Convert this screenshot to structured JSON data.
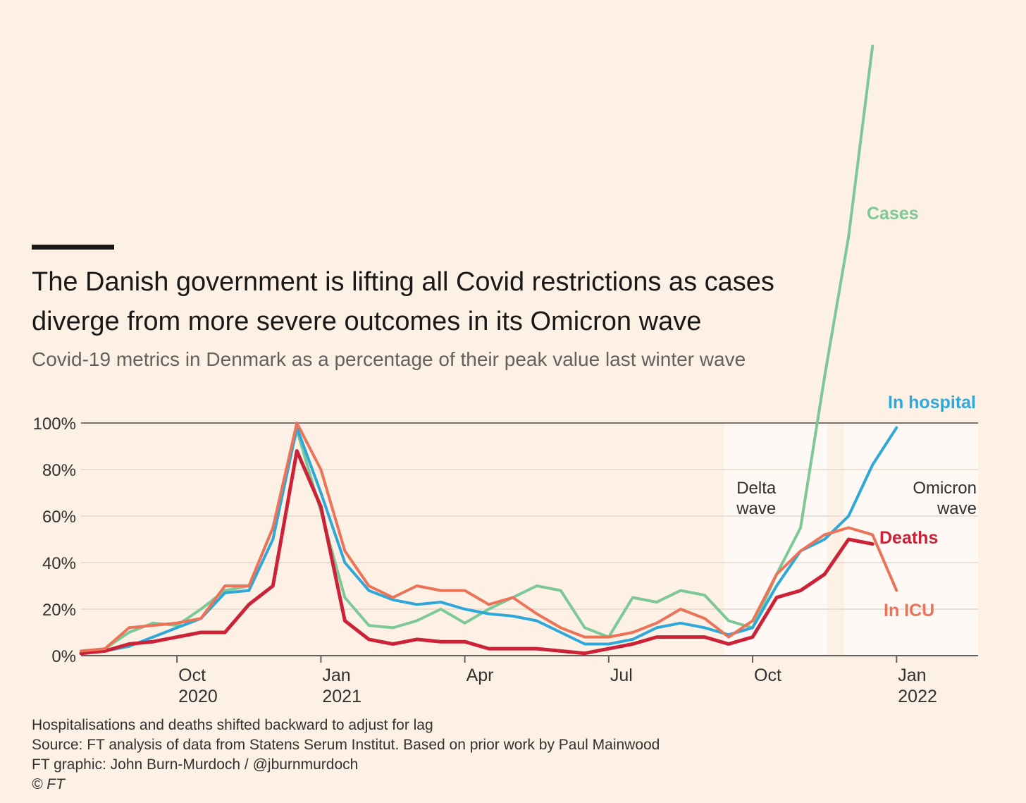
{
  "chart_data": {
    "type": "line",
    "title": "The Danish government is lifting all Covid restrictions as cases diverge from more severe outcomes in its Omicron wave",
    "subtitle": "Covid-19 metrics in Denmark as a percentage of their peak value last winter wave",
    "notes": [
      "Hospitalisations and deaths shifted backward to adjust for lag",
      "Source: FT analysis of data from Statens Serum Institut. Based on prior work by Paul Mainwood",
      "FT graphic: John Burn-Murdoch / @jburnmurdoch",
      "© FT"
    ],
    "x": [
      7,
      7.5,
      8,
      8.5,
      9,
      9.5,
      10,
      10.5,
      11,
      11.5,
      12,
      12.5,
      13,
      13.5,
      14,
      14.5,
      15,
      15.5,
      16,
      16.5,
      17,
      17.5,
      18,
      18.5,
      19,
      19.5,
      20,
      20.5,
      21,
      21.5,
      22,
      22.5,
      23,
      23.5,
      24
    ],
    "xlim": [
      7,
      25.7
    ],
    "xticks": [
      {
        "value": 9,
        "label": "Oct 2020"
      },
      {
        "value": 12,
        "label": "Jan 2021"
      },
      {
        "value": 15,
        "label": "Apr"
      },
      {
        "value": 18,
        "label": "Jul"
      },
      {
        "value": 21,
        "label": "Oct"
      },
      {
        "value": 24,
        "label": "Jan 2022"
      }
    ],
    "ylim": [
      0,
      262
    ],
    "yticks": [
      {
        "value": 0,
        "label": "0%"
      },
      {
        "value": 20,
        "label": "20%"
      },
      {
        "value": 40,
        "label": "40%"
      },
      {
        "value": 60,
        "label": "60%"
      },
      {
        "value": 80,
        "label": "80%"
      },
      {
        "value": 100,
        "label": "100%"
      }
    ],
    "grid": true,
    "bands": [
      {
        "label": "Delta wave",
        "start": 20.4,
        "end": 22.55
      },
      {
        "label": "Omicron wave",
        "start": 22.9,
        "end": 25.7
      }
    ],
    "series": [
      {
        "name": "Cases",
        "color": "#7cc896",
        "values": [
          1,
          3,
          10,
          14,
          13,
          20,
          28,
          30,
          55,
          97,
          62,
          25,
          13,
          12,
          15,
          20,
          14,
          20,
          25,
          30,
          28,
          12,
          8,
          25,
          23,
          28,
          26,
          15,
          12,
          35,
          55,
          120,
          180,
          262,
          null
        ]
      },
      {
        "name": "In hospital",
        "color": "#2ea8d8",
        "values": [
          1,
          2,
          4,
          8,
          12,
          16,
          27,
          28,
          50,
          98,
          70,
          40,
          28,
          24,
          22,
          23,
          20,
          18,
          17,
          15,
          10,
          5,
          5,
          7,
          12,
          14,
          12,
          9,
          12,
          30,
          45,
          50,
          60,
          82,
          98
        ]
      },
      {
        "name": "Deaths",
        "color": "#cc2237",
        "values": [
          1,
          2,
          5,
          6,
          8,
          10,
          10,
          22,
          30,
          88,
          64,
          15,
          7,
          5,
          7,
          6,
          6,
          3,
          3,
          3,
          2,
          1,
          3,
          5,
          8,
          8,
          8,
          5,
          8,
          25,
          28,
          35,
          50,
          48,
          null
        ]
      },
      {
        "name": "In ICU",
        "color": "#ec7358",
        "values": [
          2,
          3,
          12,
          13,
          14,
          16,
          30,
          30,
          55,
          100,
          80,
          45,
          30,
          25,
          30,
          28,
          28,
          22,
          25,
          18,
          12,
          8,
          8,
          10,
          14,
          20,
          16,
          8,
          15,
          35,
          45,
          52,
          55,
          52,
          28
        ]
      }
    ]
  }
}
